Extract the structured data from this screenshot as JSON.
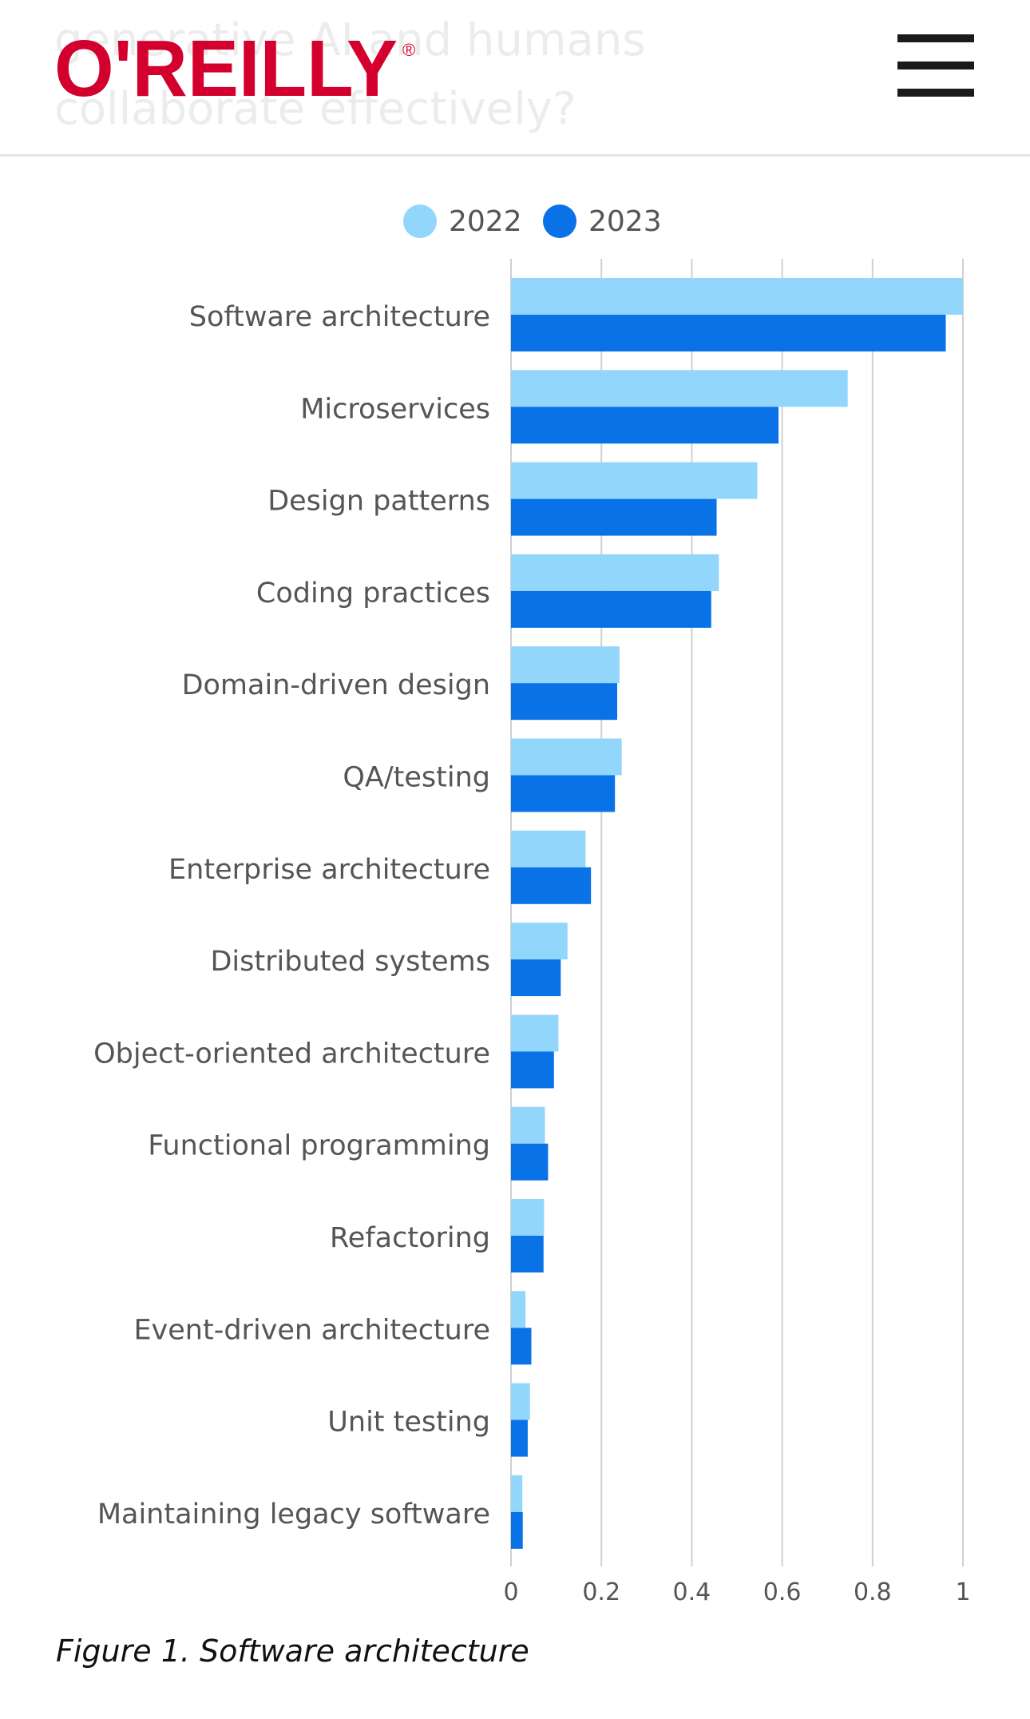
{
  "header": {
    "ghost_title": "generative AI and humans collaborate effectively?",
    "logo_text": "O'REILLY",
    "logo_registered": "®",
    "menu_icon": "hamburger-menu-icon"
  },
  "colors": {
    "brand_red": "#d3002d",
    "series_2022": "#92d6fb",
    "series_2023": "#0872e6",
    "grid": "#d0d0d0",
    "label_text": "#555555"
  },
  "chart_data": {
    "type": "bar",
    "orientation": "horizontal",
    "legend_position": "top",
    "grid": true,
    "categories": [
      "Software architecture",
      "Microservices",
      "Design patterns",
      "Coding practices",
      "Domain-driven design",
      "QA/testing",
      "Enterprise architecture",
      "Distributed systems",
      "Object-oriented architecture",
      "Functional programming",
      "Refactoring",
      "Event-driven architecture",
      "Unit testing",
      "Maintaining legacy software"
    ],
    "series": [
      {
        "name": "2022",
        "color": "#92d6fb",
        "values": [
          1.0,
          0.745,
          0.545,
          0.46,
          0.24,
          0.245,
          0.165,
          0.125,
          0.105,
          0.075,
          0.073,
          0.032,
          0.042,
          0.025
        ]
      },
      {
        "name": "2023",
        "color": "#0872e6",
        "values": [
          0.962,
          0.592,
          0.455,
          0.443,
          0.235,
          0.23,
          0.177,
          0.11,
          0.095,
          0.082,
          0.072,
          0.045,
          0.037,
          0.026
        ]
      }
    ],
    "xlim": [
      0,
      1
    ],
    "xticks": [
      "0",
      "0.2",
      "0.4",
      "0.6",
      "0.8",
      "1"
    ],
    "title": "",
    "xlabel": "",
    "ylabel": ""
  },
  "caption": "Figure 1. Software architecture"
}
